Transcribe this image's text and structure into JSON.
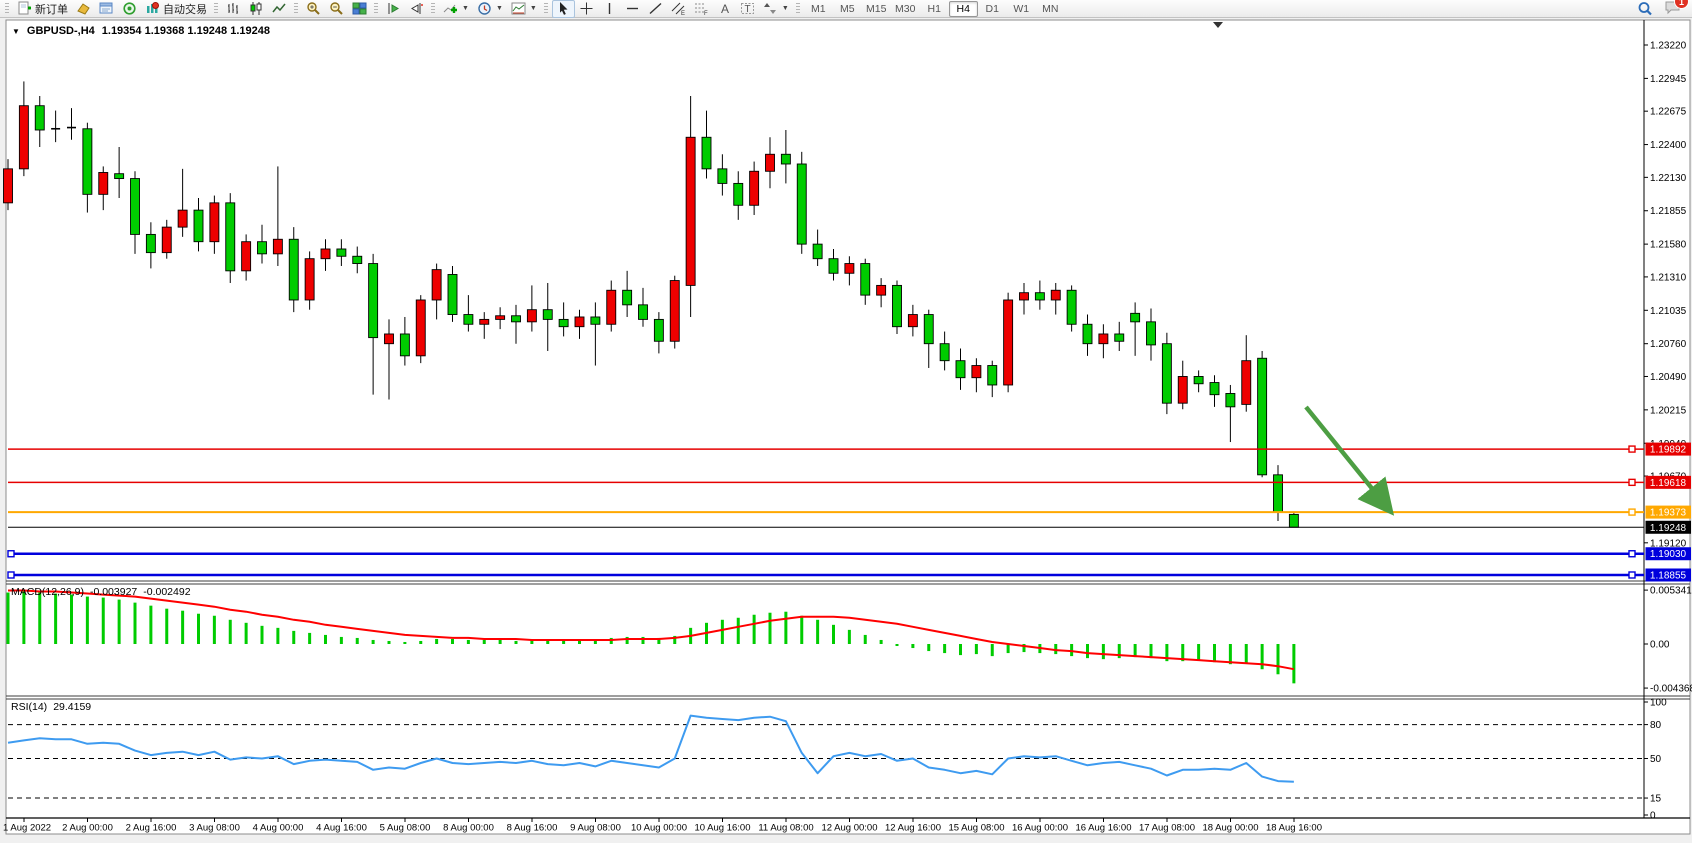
{
  "toolbar": {
    "new_order_label": "新订单",
    "auto_trading_label": "自动交易",
    "timeframes": [
      "M1",
      "M5",
      "M15",
      "M30",
      "H1",
      "H4",
      "D1",
      "W1",
      "MN"
    ],
    "active_timeframe": "H4",
    "notification_count": "1",
    "icon_names": [
      "new-order-icon",
      "market-watch-icon",
      "data-window-icon",
      "navigator-icon",
      "auto-trading-icon",
      "bar-chart-icon",
      "candlestick-chart-icon",
      "line-chart-icon",
      "zoom-in-icon",
      "zoom-out-icon",
      "tile-windows-icon",
      "auto-scroll-icon",
      "chart-shift-icon",
      "indicators-icon",
      "periods-icon",
      "templates-icon",
      "cursor-icon",
      "crosshair-icon",
      "vertical-line-icon",
      "horizontal-line-icon",
      "trendline-icon",
      "channel-icon",
      "fibonacci-icon",
      "text-icon",
      "text-label-icon",
      "shapes-icon",
      "search-icon",
      "notifications-icon"
    ]
  },
  "chart": {
    "symbol_period": "GBPUSD-,H4",
    "quote": "1.19354 1.19368 1.19248 1.19248"
  },
  "price_axis": {
    "ticks": [
      "1.23220",
      "1.22945",
      "1.22675",
      "1.22400",
      "1.22130",
      "1.21855",
      "1.21580",
      "1.21310",
      "1.21035",
      "1.20760",
      "1.20490",
      "1.20215",
      "1.19940",
      "1.19670",
      "1.19120"
    ]
  },
  "hlines": [
    {
      "label": "1.19892",
      "value": 1.19892,
      "color": "#e60000",
      "lw": 1.5,
      "handles": "right"
    },
    {
      "label": "1.19618",
      "value": 1.19618,
      "color": "#e60000",
      "lw": 1.5,
      "handles": "right"
    },
    {
      "label": "1.19373",
      "value": 1.19373,
      "color": "#ffa800",
      "lw": 2,
      "handles": "right"
    },
    {
      "label": "1.19248",
      "value": 1.19248,
      "color": "#000000",
      "lw": 1,
      "handles": "none"
    },
    {
      "label": "1.19030",
      "value": 1.1903,
      "color": "#0000dd",
      "lw": 2.4,
      "handles": "both"
    },
    {
      "label": "1.18855",
      "value": 1.18855,
      "color": "#0000dd",
      "lw": 2.4,
      "handles": "both"
    }
  ],
  "indicators": {
    "macd": {
      "label": "MACD(12,26,9)",
      "value1": "-0.003927",
      "value2": "-0.002492",
      "scale": [
        [
          "0.005341",
          0.005341
        ],
        [
          "0.00",
          0
        ],
        [
          "-0.004368",
          -0.004368
        ]
      ]
    },
    "rsi": {
      "label": "RSI(14)",
      "value": "29.4159",
      "scale": [
        [
          "100",
          100
        ],
        [
          "80",
          80
        ],
        [
          "50",
          50
        ],
        [
          "15",
          15
        ],
        [
          "0",
          0
        ]
      ],
      "dashed_levels": [
        80,
        50,
        15
      ]
    }
  },
  "chart_data": {
    "type": "candlestick",
    "symbol": "GBPUSD-",
    "timeframe": "H4",
    "note": "OHLC candles; red = up candle, green = down candle (CN convention)",
    "y_range": {
      "top": 1.2322,
      "bottom": 1.18855
    },
    "x_labels": [
      "1 Aug 2022",
      "2 Aug 00:00",
      "2 Aug 16:00",
      "3 Aug 08:00",
      "4 Aug 00:00",
      "4 Aug 16:00",
      "5 Aug 08:00",
      "8 Aug 00:00",
      "8 Aug 16:00",
      "9 Aug 08:00",
      "10 Aug 00:00",
      "10 Aug 16:00",
      "11 Aug 08:00",
      "12 Aug 00:00",
      "12 Aug 16:00",
      "15 Aug 08:00",
      "16 Aug 00:00",
      "16 Aug 16:00",
      "17 Aug 08:00",
      "18 Aug 00:00",
      "18 Aug 16:00"
    ],
    "candles": [
      [
        1.2192,
        1.2228,
        1.2186,
        1.222
      ],
      [
        1.222,
        1.2292,
        1.2214,
        1.2272
      ],
      [
        1.2272,
        1.228,
        1.2238,
        1.2252
      ],
      [
        1.2253,
        1.2268,
        1.2242,
        1.2253
      ],
      [
        1.2254,
        1.227,
        1.2244,
        1.2254
      ],
      [
        1.2253,
        1.2258,
        1.2184,
        1.2199
      ],
      [
        1.2199,
        1.2222,
        1.2186,
        1.2217
      ],
      [
        1.2216,
        1.2238,
        1.2196,
        1.2212
      ],
      [
        1.2212,
        1.2218,
        1.215,
        1.2166
      ],
      [
        1.2166,
        1.2176,
        1.2138,
        1.2151
      ],
      [
        1.2151,
        1.2178,
        1.2146,
        1.2172
      ],
      [
        1.2172,
        1.222,
        1.2164,
        1.2186
      ],
      [
        1.2186,
        1.2196,
        1.2152,
        1.216
      ],
      [
        1.216,
        1.2198,
        1.215,
        1.2192
      ],
      [
        1.2192,
        1.22,
        1.2126,
        1.2136
      ],
      [
        1.2136,
        1.2166,
        1.2128,
        1.216
      ],
      [
        1.216,
        1.2174,
        1.2142,
        1.215
      ],
      [
        1.215,
        1.2222,
        1.214,
        1.2162
      ],
      [
        1.2162,
        1.2172,
        1.2102,
        1.2112
      ],
      [
        1.2112,
        1.2152,
        1.2104,
        1.2146
      ],
      [
        1.2146,
        1.2162,
        1.2136,
        1.2154
      ],
      [
        1.2154,
        1.2162,
        1.214,
        1.2148
      ],
      [
        1.2148,
        1.2156,
        1.2134,
        1.2142
      ],
      [
        1.2142,
        1.215,
        1.2034,
        1.2081
      ],
      [
        1.2076,
        1.2096,
        1.203,
        1.2084
      ],
      [
        1.2084,
        1.2098,
        1.2058,
        1.2066
      ],
      [
        1.2066,
        1.2116,
        1.206,
        1.2112
      ],
      [
        1.2112,
        1.2142,
        1.2096,
        1.2137
      ],
      [
        1.2133,
        1.214,
        1.2094,
        1.21
      ],
      [
        1.21,
        1.2116,
        1.2086,
        1.2092
      ],
      [
        1.2092,
        1.2102,
        1.208,
        1.2096
      ],
      [
        1.2096,
        1.2106,
        1.2088,
        1.2099
      ],
      [
        1.2099,
        1.2108,
        1.2076,
        1.2094
      ],
      [
        1.2094,
        1.2124,
        1.2086,
        1.2104
      ],
      [
        1.2104,
        1.2126,
        1.207,
        1.2096
      ],
      [
        1.2096,
        1.211,
        1.2082,
        1.209
      ],
      [
        1.209,
        1.2104,
        1.208,
        1.2098
      ],
      [
        1.2098,
        1.211,
        1.2058,
        1.2092
      ],
      [
        1.2092,
        1.2128,
        1.2086,
        1.212
      ],
      [
        1.212,
        1.2136,
        1.2098,
        1.2108
      ],
      [
        1.2108,
        1.2122,
        1.209,
        1.2096
      ],
      [
        1.2096,
        1.2102,
        1.2068,
        1.2078
      ],
      [
        1.2078,
        1.2132,
        1.2072,
        1.2128
      ],
      [
        1.2124,
        1.228,
        1.2098,
        1.2246
      ],
      [
        1.2246,
        1.2268,
        1.2212,
        1.222
      ],
      [
        1.222,
        1.2232,
        1.2198,
        1.2208
      ],
      [
        1.2208,
        1.2218,
        1.2178,
        1.219
      ],
      [
        1.219,
        1.2226,
        1.2182,
        1.2218
      ],
      [
        1.2218,
        1.2246,
        1.2204,
        1.2232
      ],
      [
        1.2232,
        1.2252,
        1.2208,
        1.2224
      ],
      [
        1.2224,
        1.2234,
        1.215,
        1.2158
      ],
      [
        1.2158,
        1.217,
        1.214,
        1.2146
      ],
      [
        1.2146,
        1.2154,
        1.2128,
        1.2134
      ],
      [
        1.2134,
        1.2148,
        1.2124,
        1.2142
      ],
      [
        1.2142,
        1.2146,
        1.2108,
        1.2116
      ],
      [
        1.2116,
        1.213,
        1.2106,
        1.2124
      ],
      [
        1.2124,
        1.2128,
        1.2084,
        1.209
      ],
      [
        1.209,
        1.2108,
        1.2082,
        1.21
      ],
      [
        1.21,
        1.2104,
        1.2056,
        1.2076
      ],
      [
        1.2076,
        1.2086,
        1.2054,
        1.2062
      ],
      [
        1.2062,
        1.2072,
        1.2038,
        1.2048
      ],
      [
        1.2048,
        1.2064,
        1.2036,
        1.2058
      ],
      [
        1.2058,
        1.2062,
        1.2032,
        1.2042
      ],
      [
        1.2042,
        1.2118,
        1.2036,
        1.2112
      ],
      [
        1.2112,
        1.2126,
        1.21,
        1.2118
      ],
      [
        1.2118,
        1.2128,
        1.2104,
        1.2112
      ],
      [
        1.2112,
        1.2126,
        1.21,
        1.212
      ],
      [
        1.212,
        1.2124,
        1.2086,
        1.2092
      ],
      [
        1.2092,
        1.21,
        1.2066,
        1.2076
      ],
      [
        1.2076,
        1.2092,
        1.2064,
        1.2084
      ],
      [
        1.2084,
        1.2094,
        1.207,
        1.2078
      ],
      [
        1.2101,
        1.211,
        1.2066,
        1.2094
      ],
      [
        1.2094,
        1.2105,
        1.2062,
        1.2075
      ],
      [
        1.2076,
        1.2085,
        1.2018,
        1.2027
      ],
      [
        1.2027,
        1.2062,
        1.2022,
        1.2049
      ],
      [
        1.2049,
        1.2054,
        1.2036,
        1.2043
      ],
      [
        1.2044,
        1.205,
        1.2024,
        1.2034
      ],
      [
        1.2035,
        1.2042,
        1.1995,
        1.2024
      ],
      [
        1.2026,
        1.2083,
        1.202,
        1.2062
      ],
      [
        1.2064,
        1.207,
        1.1966,
        1.1968
      ],
      [
        1.1968,
        1.1976,
        1.193,
        1.1937
      ],
      [
        1.19354,
        1.19368,
        1.19248,
        1.19248
      ]
    ],
    "macd_histogram": [
      0.0051,
      0.0053,
      0.0052,
      0.005,
      0.0049,
      0.0047,
      0.0046,
      0.0044,
      0.0041,
      0.0038,
      0.0035,
      0.0033,
      0.003,
      0.0028,
      0.0024,
      0.0021,
      0.0018,
      0.0016,
      0.0013,
      0.0011,
      0.0009,
      0.0007,
      0.0006,
      0.0004,
      0.0003,
      0.0002,
      0.0003,
      0.0005,
      0.0005,
      0.0004,
      0.0004,
      0.0004,
      0.0003,
      0.0004,
      0.0004,
      0.0003,
      0.0004,
      0.0004,
      0.0006,
      0.0007,
      0.0007,
      0.0006,
      0.0008,
      0.0016,
      0.0021,
      0.0024,
      0.0026,
      0.0029,
      0.0031,
      0.0032,
      0.0028,
      0.0024,
      0.0019,
      0.0014,
      0.0009,
      0.0004,
      -0.0002,
      -0.0004,
      -0.0007,
      -0.0009,
      -0.0011,
      -0.001,
      -0.0012,
      -0.0009,
      -0.0008,
      -0.0009,
      -0.001,
      -0.0012,
      -0.0014,
      -0.0015,
      -0.0014,
      -0.0013,
      -0.0014,
      -0.0017,
      -0.0017,
      -0.0016,
      -0.0018,
      -0.002,
      -0.0019,
      -0.0025,
      -0.003,
      -0.0039
    ],
    "macd_signal": [
      0.0053,
      0.0053,
      0.0052,
      0.0052,
      0.0051,
      0.005,
      0.0049,
      0.0048,
      0.0047,
      0.0045,
      0.0043,
      0.0041,
      0.0039,
      0.0037,
      0.0034,
      0.0032,
      0.0029,
      0.0027,
      0.0024,
      0.0022,
      0.0019,
      0.0017,
      0.0015,
      0.0013,
      0.0011,
      0.0009,
      0.0008,
      0.0007,
      0.0006,
      0.0006,
      0.0005,
      0.0005,
      0.0005,
      0.0004,
      0.0004,
      0.0004,
      0.0004,
      0.0004,
      0.0004,
      0.0005,
      0.0005,
      0.0005,
      0.0006,
      0.0008,
      0.0011,
      0.0014,
      0.0017,
      0.002,
      0.0023,
      0.0025,
      0.0027,
      0.0027,
      0.0027,
      0.0026,
      0.0024,
      0.0022,
      0.002,
      0.0017,
      0.0014,
      0.0011,
      0.0008,
      0.0005,
      0.0002,
      0.0,
      -0.0002,
      -0.0004,
      -0.0006,
      -0.0007,
      -0.0009,
      -0.001,
      -0.0011,
      -0.0012,
      -0.0013,
      -0.0014,
      -0.0015,
      -0.0016,
      -0.0017,
      -0.0018,
      -0.0019,
      -0.002,
      -0.0022,
      -0.0025
    ],
    "rsi": [
      64,
      66,
      68,
      67,
      67,
      63,
      64,
      63,
      57,
      53,
      55,
      56,
      53,
      56,
      49,
      51,
      50,
      52,
      45,
      48,
      49,
      48,
      47,
      40,
      42,
      41,
      46,
      50,
      46,
      45,
      46,
      47,
      46,
      48,
      45,
      44,
      46,
      43,
      48,
      46,
      44,
      42,
      50,
      88,
      86,
      85,
      84,
      86,
      87,
      83,
      55,
      37,
      52,
      55,
      52,
      54,
      48,
      50,
      42,
      40,
      37,
      39,
      36,
      50,
      52,
      51,
      52,
      48,
      44,
      46,
      47,
      44,
      41,
      35,
      40,
      40,
      41,
      40,
      46,
      34,
      30,
      29.4
    ],
    "colors": {
      "up": "#ee0000",
      "down": "#00cc00",
      "wick": "#000000",
      "macd_hist": "#00cc00",
      "macd_signal": "#ff0000",
      "rsi_line": "#3e9bf0",
      "arrow": "#4d9e43"
    }
  },
  "annotations": {
    "arrow": {
      "from": [
        1306,
        407
      ],
      "to": [
        1387,
        507
      ],
      "color": "#4d9e43"
    }
  }
}
